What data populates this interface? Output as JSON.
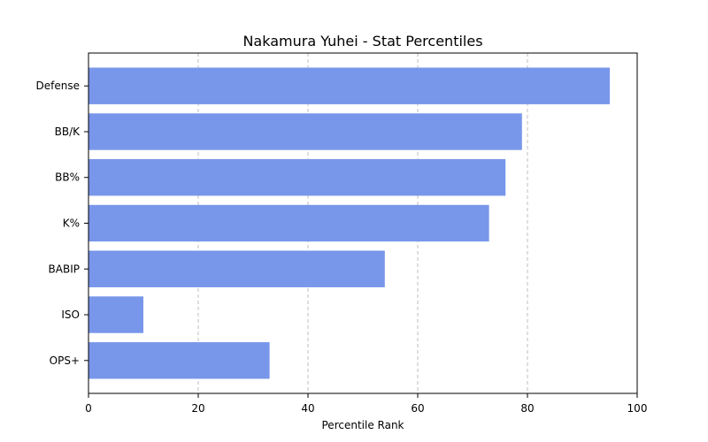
{
  "chart_data": {
    "type": "bar",
    "orientation": "horizontal",
    "title": "Nakamura Yuhei - Stat Percentiles",
    "xlabel": "Percentile Rank",
    "ylabel": "",
    "xlim": [
      0,
      100
    ],
    "xticks": [
      0,
      20,
      40,
      60,
      80,
      100
    ],
    "grid": "x, dashed",
    "categories": [
      "Defense",
      "BB/K",
      "BB%",
      "K%",
      "BABIP",
      "ISO",
      "OPS+"
    ],
    "values": [
      95,
      79,
      76,
      73,
      54,
      10,
      33
    ],
    "bar_color": "#7896ea"
  }
}
